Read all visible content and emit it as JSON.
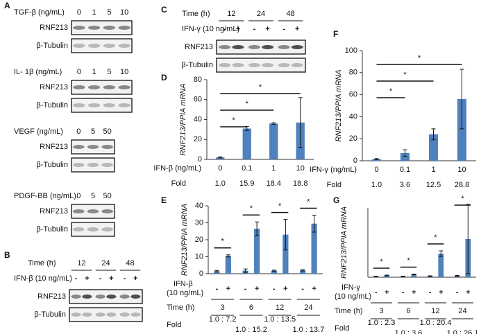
{
  "blots": [
    {
      "panel": "A",
      "groups": [
        {
          "treatment": "TGF-β (ng/mL)",
          "doses": [
            "0",
            "1",
            "5",
            "10"
          ]
        },
        {
          "treatment": "IL- 1β (ng/mL)",
          "doses": [
            "0",
            "1",
            "5",
            "10"
          ]
        },
        {
          "treatment": "VEGF (ng/mL)",
          "doses": [
            "0",
            "5",
            "50"
          ]
        },
        {
          "treatment": "PDGF-BB (ng/mL)",
          "doses": [
            "0",
            "5",
            "50"
          ]
        }
      ],
      "rows": [
        "RNF213",
        "β-Tubulin"
      ]
    },
    {
      "panel": "B",
      "time_label": "Time (h)",
      "times": [
        "12",
        "24",
        "48"
      ],
      "treatment": "IFN-β (10 ng/mL)",
      "signs": [
        "-",
        "+"
      ],
      "rows": [
        "RNF213",
        "β-Tubulin"
      ]
    },
    {
      "panel": "C",
      "time_label": "Time (h)",
      "times": [
        "12",
        "24",
        "48"
      ],
      "treatment": "IFN-γ (10 ng/mL)",
      "signs": [
        "-",
        "+"
      ],
      "rows": [
        "RNF213",
        "β-Tubulin"
      ]
    }
  ],
  "chart_data": [
    {
      "panel": "D",
      "type": "bar",
      "ylabel": "RNF213/PPIA mRNA",
      "color": "#4f81bd",
      "ylim": [
        0,
        80
      ],
      "yticks": [
        0,
        20,
        40,
        60,
        80
      ],
      "x_label": "IFN-β (ng/mL)",
      "categories": [
        "0",
        "0.1",
        "1",
        "10"
      ],
      "values": [
        2,
        31,
        36,
        37
      ],
      "errors": [
        0.5,
        2,
        0.8,
        25
      ],
      "fold_label": "Fold",
      "fold": [
        "1.0",
        "15.9",
        "18.4",
        "18.8"
      ],
      "annotations": [
        "*",
        "*",
        "*"
      ]
    },
    {
      "panel": "E",
      "type": "paired_bar",
      "ylabel": "RNF213/PPIA mRNA",
      "color": "#4f81bd",
      "ylim": [
        0,
        40
      ],
      "yticks": [
        0,
        10,
        20,
        30,
        40
      ],
      "treatment": [
        "IFN-β",
        "(10 ng/mL)"
      ],
      "categories": [
        "-",
        "+",
        "-",
        "+",
        "-",
        "+",
        "-",
        "+"
      ],
      "group_label": "Time (h)",
      "groups": [
        "3",
        "6",
        "12",
        "24"
      ],
      "values": [
        1.5,
        10.5,
        1.8,
        26.5,
        1.8,
        23,
        2,
        29.5
      ],
      "errors": [
        0.4,
        0.6,
        1,
        4,
        0.3,
        9,
        0.4,
        5
      ],
      "fold_label": "Fold",
      "fold": [
        "1.0 : 7.2",
        "1.0 : 15.2",
        "1.0 : 13.5",
        "1.0 : 13.7"
      ],
      "annotations": [
        "*",
        "*",
        "*",
        "*"
      ]
    },
    {
      "panel": "F",
      "type": "bar",
      "ylabel": "RNF213/PPIA mRNA",
      "color": "#4f81bd",
      "ylim": [
        0,
        100
      ],
      "yticks": [
        0,
        20,
        40,
        60,
        80,
        100
      ],
      "x_label": "IFN-γ (ng/mL)",
      "categories": [
        "0",
        "0.1",
        "1",
        "10"
      ],
      "values": [
        1.5,
        7,
        24,
        56
      ],
      "errors": [
        0.5,
        3,
        5,
        27
      ],
      "fold_label": "Fold",
      "fold": [
        "1.0",
        "3.6",
        "12.5",
        "28.8"
      ],
      "annotations": [
        "*",
        "*",
        "*"
      ]
    },
    {
      "panel": "G",
      "type": "paired_bar",
      "ylabel": "RNF213/PPIA mRNA",
      "color": "#4f81bd",
      "ylim": [
        0,
        10
      ],
      "treatment": [
        "IFN-γ",
        "(10 ng/mL)"
      ],
      "categories": [
        "-",
        "+",
        "-",
        "+",
        "-",
        "+",
        "-",
        "+"
      ],
      "group_label": "Time (h)",
      "groups": [
        "3",
        "6",
        "12",
        "24"
      ],
      "values": [
        0.1,
        0.25,
        0.1,
        0.4,
        0.15,
        3.4,
        0.2,
        5.5
      ],
      "errors": [
        0.05,
        0.05,
        0.05,
        0.05,
        0.05,
        0.4,
        0.05,
        5
      ],
      "fold_label": "Fold",
      "fold": [
        "1.0 : 2.3",
        "1.0 : 3.6",
        "1.0 : 20.4",
        "1.0 : 26.1"
      ],
      "annotations": [
        "*",
        "*",
        "*",
        "*"
      ]
    }
  ]
}
